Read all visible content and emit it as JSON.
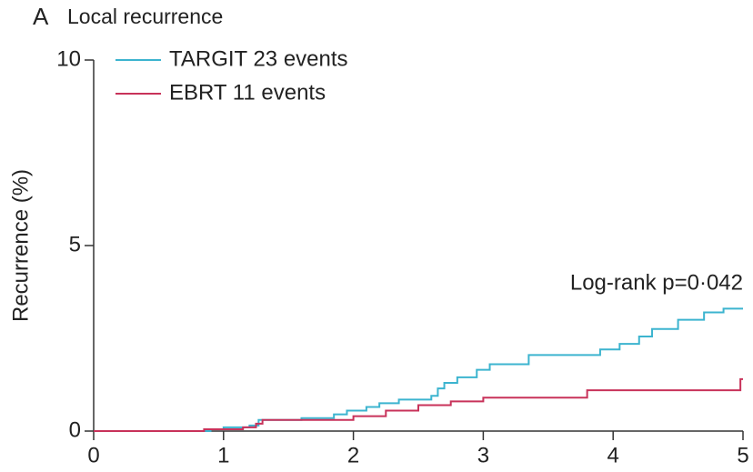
{
  "chart_data": {
    "type": "step",
    "panel_label": "A",
    "title": "Local recurrence",
    "ylabel": "Recurrence (%)",
    "annotation": "Log-rank p=0·042",
    "xlim": [
      0,
      5
    ],
    "xticks": [
      0,
      1,
      2,
      3,
      4,
      5
    ],
    "ylim": [
      0,
      10
    ],
    "yticks": [
      0,
      5,
      10
    ],
    "series": [
      {
        "name": "TARGIT 23 events",
        "color": "#3cb4cf",
        "x": [
          0,
          0.9,
          1.0,
          1.2,
          1.27,
          1.6,
          1.85,
          1.95,
          2.1,
          2.2,
          2.35,
          2.6,
          2.65,
          2.7,
          2.8,
          2.95,
          3.05,
          3.35,
          3.9,
          4.05,
          4.2,
          4.3,
          4.5,
          4.7,
          4.85,
          5
        ],
        "values": [
          0,
          0.05,
          0.1,
          0.15,
          0.3,
          0.35,
          0.45,
          0.55,
          0.65,
          0.75,
          0.85,
          0.95,
          1.15,
          1.3,
          1.45,
          1.65,
          1.8,
          2.05,
          2.2,
          2.35,
          2.55,
          2.75,
          3.0,
          3.2,
          3.3,
          3.3
        ]
      },
      {
        "name": "EBRT 11 events",
        "color": "#c8325a",
        "x": [
          0,
          0.85,
          1.15,
          1.25,
          1.3,
          2.0,
          2.25,
          2.5,
          2.75,
          3.0,
          3.8,
          4.98,
          5
        ],
        "values": [
          0,
          0.05,
          0.1,
          0.2,
          0.3,
          0.4,
          0.55,
          0.7,
          0.8,
          0.9,
          1.1,
          1.4,
          1.4
        ]
      }
    ]
  }
}
